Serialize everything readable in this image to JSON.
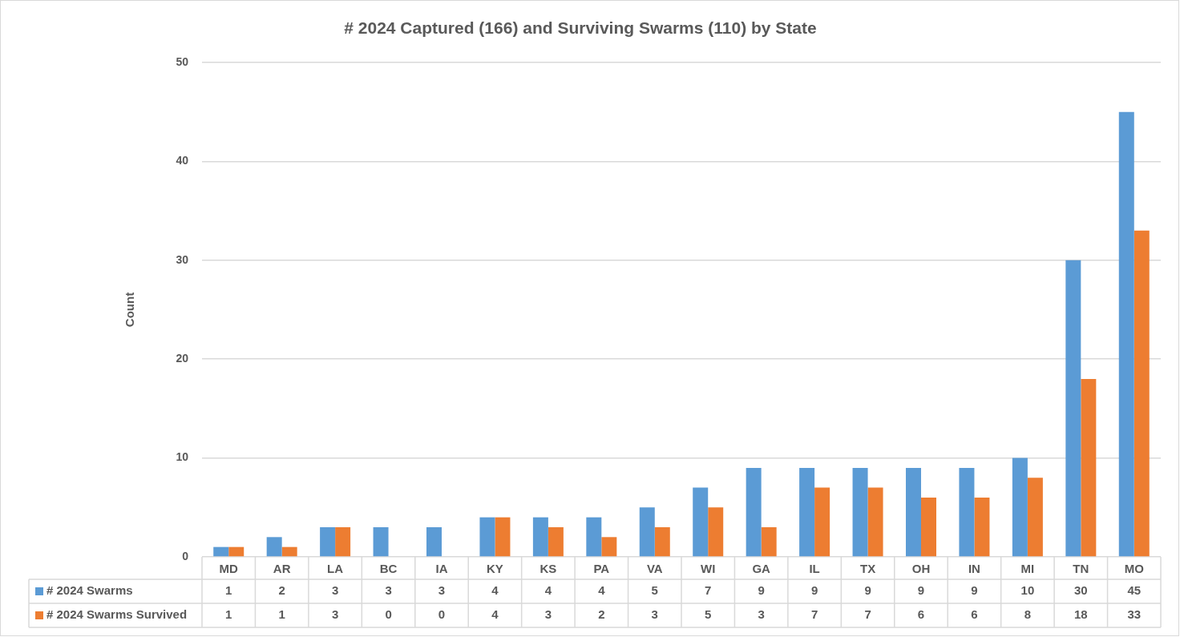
{
  "chart_data": {
    "type": "bar",
    "title": "# 2024 Captured (166) and Surviving Swarms (110) by State",
    "ylabel": "Count",
    "categories": [
      "MD",
      "AR",
      "LA",
      "BC",
      "IA",
      "KY",
      "KS",
      "PA",
      "VA",
      "WI",
      "GA",
      "IL",
      "TX",
      "OH",
      "IN",
      "MI",
      "TN",
      "MO"
    ],
    "series": [
      {
        "name": "# 2024 Swarms",
        "color": "#5b9bd5",
        "values": [
          1,
          2,
          3,
          3,
          3,
          4,
          4,
          4,
          5,
          7,
          9,
          9,
          9,
          9,
          9,
          10,
          30,
          45
        ]
      },
      {
        "name": "# 2024 Swarms Survived",
        "color": "#ed7d31",
        "values": [
          1,
          1,
          3,
          0,
          0,
          4,
          3,
          2,
          3,
          5,
          3,
          7,
          7,
          6,
          6,
          8,
          18,
          33
        ]
      }
    ],
    "ylim": [
      0,
      50
    ],
    "yticks": [
      0,
      10,
      20,
      30,
      40,
      50
    ],
    "grid": "y",
    "data_labels": true,
    "legend": "bottom left"
  }
}
